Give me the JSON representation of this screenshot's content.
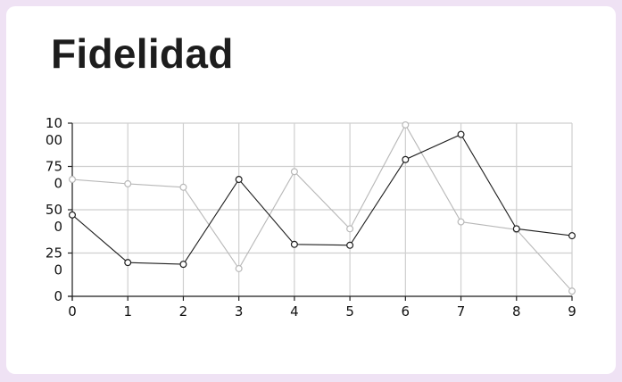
{
  "title": "Fidelidad",
  "chart_data": {
    "type": "line",
    "x": [
      0,
      1,
      2,
      3,
      4,
      5,
      6,
      7,
      8,
      9
    ],
    "ylim": [
      0,
      1000
    ],
    "yticks": [
      {
        "value": 0,
        "lines": [
          "0"
        ]
      },
      {
        "value": 250,
        "lines": [
          "25",
          "0"
        ]
      },
      {
        "value": 500,
        "lines": [
          "50",
          "0"
        ]
      },
      {
        "value": 750,
        "lines": [
          "75",
          "0"
        ]
      },
      {
        "value": 1000,
        "lines": [
          "10",
          "00"
        ]
      }
    ],
    "xticks": [
      "0",
      "1",
      "2",
      "3",
      "4",
      "5",
      "6",
      "7",
      "8",
      "9"
    ],
    "grid": true,
    "series": [
      {
        "color": "#b8b8b8",
        "values": [
          675,
          650,
          630,
          160,
          720,
          390,
          990,
          430,
          385,
          30
        ]
      },
      {
        "color": "#1e1e1e",
        "values": [
          470,
          195,
          185,
          675,
          300,
          295,
          790,
          935,
          390,
          350
        ]
      }
    ]
  }
}
